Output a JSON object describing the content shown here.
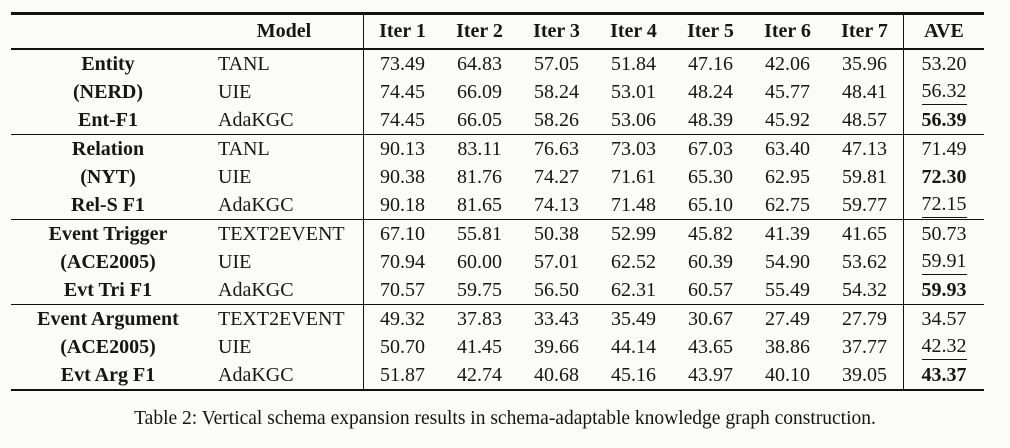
{
  "table": {
    "header": {
      "model": "Model",
      "iters": [
        "Iter 1",
        "Iter 2",
        "Iter 3",
        "Iter 4",
        "Iter 5",
        "Iter 6",
        "Iter 7"
      ],
      "ave": "AVE"
    },
    "groups": [
      {
        "task": "Entity",
        "dataset": "(NERD)",
        "metric": "Ent-F1",
        "rows": [
          {
            "model": "TANL",
            "values": [
              "73.49",
              "64.83",
              "57.05",
              "51.84",
              "47.16",
              "42.06",
              "35.96"
            ],
            "ave": "53.20",
            "ave_emphasis": "none"
          },
          {
            "model": "UIE",
            "values": [
              "74.45",
              "66.09",
              "58.24",
              "53.01",
              "48.24",
              "45.77",
              "48.41"
            ],
            "ave": "56.32",
            "ave_emphasis": "underline"
          },
          {
            "model": "AdaKGC",
            "values": [
              "74.45",
              "66.05",
              "58.26",
              "53.06",
              "48.39",
              "45.92",
              "48.57"
            ],
            "ave": "56.39",
            "ave_emphasis": "bold"
          }
        ]
      },
      {
        "task": "Relation",
        "dataset": "(NYT)",
        "metric": "Rel-S F1",
        "rows": [
          {
            "model": "TANL",
            "values": [
              "90.13",
              "83.11",
              "76.63",
              "73.03",
              "67.03",
              "63.40",
              "47.13"
            ],
            "ave": "71.49",
            "ave_emphasis": "none"
          },
          {
            "model": "UIE",
            "values": [
              "90.38",
              "81.76",
              "74.27",
              "71.61",
              "65.30",
              "62.95",
              "59.81"
            ],
            "ave": "72.30",
            "ave_emphasis": "bold"
          },
          {
            "model": "AdaKGC",
            "values": [
              "90.18",
              "81.65",
              "74.13",
              "71.48",
              "65.10",
              "62.75",
              "59.77"
            ],
            "ave": "72.15",
            "ave_emphasis": "underline"
          }
        ]
      },
      {
        "task": "Event Trigger",
        "dataset": "(ACE2005)",
        "metric": "Evt Tri F1",
        "rows": [
          {
            "model": "TEXT2EVENT",
            "values": [
              "67.10",
              "55.81",
              "50.38",
              "52.99",
              "45.82",
              "41.39",
              "41.65"
            ],
            "ave": "50.73",
            "ave_emphasis": "none"
          },
          {
            "model": "UIE",
            "values": [
              "70.94",
              "60.00",
              "57.01",
              "62.52",
              "60.39",
              "54.90",
              "53.62"
            ],
            "ave": "59.91",
            "ave_emphasis": "underline"
          },
          {
            "model": "AdaKGC",
            "values": [
              "70.57",
              "59.75",
              "56.50",
              "62.31",
              "60.57",
              "55.49",
              "54.32"
            ],
            "ave": "59.93",
            "ave_emphasis": "bold"
          }
        ]
      },
      {
        "task": "Event Argument",
        "dataset": "(ACE2005)",
        "metric": "Evt Arg F1",
        "rows": [
          {
            "model": "TEXT2EVENT",
            "values": [
              "49.32",
              "37.83",
              "33.43",
              "35.49",
              "30.67",
              "27.49",
              "27.79"
            ],
            "ave": "34.57",
            "ave_emphasis": "none"
          },
          {
            "model": "UIE",
            "values": [
              "50.70",
              "41.45",
              "39.66",
              "44.14",
              "43.65",
              "38.86",
              "37.77"
            ],
            "ave": "42.32",
            "ave_emphasis": "underline"
          },
          {
            "model": "AdaKGC",
            "values": [
              "51.87",
              "42.74",
              "40.68",
              "45.16",
              "43.97",
              "40.10",
              "39.05"
            ],
            "ave": "43.37",
            "ave_emphasis": "bold"
          }
        ]
      }
    ]
  },
  "caption": "Table 2: Vertical schema expansion results in schema-adaptable knowledge graph construction."
}
